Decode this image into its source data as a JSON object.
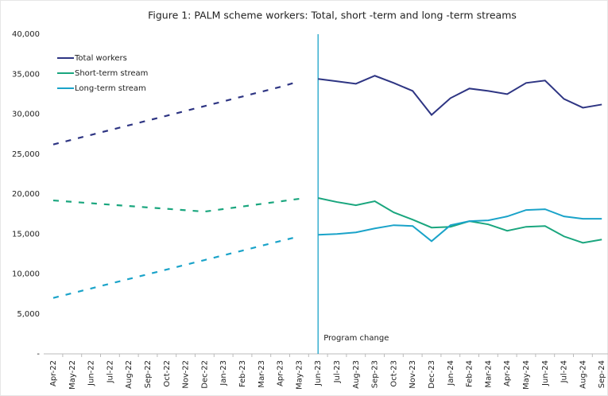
{
  "chart_data": {
    "type": "line",
    "title": "Figure 1: PALM scheme workers: Total, short -term and long -term streams",
    "categories": [
      "Apr-22",
      "May-22",
      "Jun-22",
      "Jul-22",
      "Aug-22",
      "Sep-22",
      "Oct-22",
      "Nov-22",
      "Dec-22",
      "Jan-23",
      "Feb-23",
      "Mar-23",
      "Apr-23",
      "May-23",
      "Jun-23",
      "Jul-23",
      "Aug-23",
      "Sep-23",
      "Oct-23",
      "Nov-23",
      "Dec-23",
      "Jan-24",
      "Feb-24",
      "Mar-24",
      "Apr-24",
      "May-24",
      "Jun-24",
      "Jul-24",
      "Aug-24",
      "Sep-24"
    ],
    "series": [
      {
        "name": "Total workers",
        "color": "#2e3583",
        "values": [
          26200,
          26800,
          27400,
          28000,
          28600,
          29200,
          29800,
          30400,
          31000,
          31600,
          32200,
          32800,
          33400,
          34100,
          34400,
          34100,
          33800,
          34800,
          33900,
          32900,
          29900,
          32000,
          33200,
          32900,
          32500,
          33900,
          34200,
          31900,
          30800,
          31200
        ]
      },
      {
        "name": "Short-term stream",
        "color": "#1aa67e",
        "values": [
          19200,
          19020,
          18850,
          18670,
          18500,
          18320,
          18150,
          17970,
          17800,
          18120,
          18440,
          18760,
          19080,
          19400,
          19500,
          19000,
          18600,
          19100,
          17700,
          16800,
          15800,
          15900,
          16600,
          16200,
          15400,
          15900,
          16000,
          14700,
          13900,
          14300
        ]
      },
      {
        "name": "Long-term stream",
        "color": "#1aa3c9",
        "values": [
          7000,
          7590,
          8180,
          8780,
          9370,
          9960,
          10550,
          11150,
          11740,
          12330,
          12920,
          13520,
          14110,
          14700,
          14900,
          15000,
          15200,
          15700,
          16100,
          16000,
          14100,
          16100,
          16600,
          16700,
          17200,
          18000,
          18100,
          17200,
          16900,
          16900
        ]
      }
    ],
    "annotations": [
      {
        "text": "Program change",
        "x": "Jun-23",
        "color": "#1aa3c9"
      }
    ],
    "ylim": [
      0,
      40000
    ],
    "yticks": [
      {
        "value": 0,
        "label": "-"
      },
      {
        "value": 5000,
        "label": "5,000"
      },
      {
        "value": 10000,
        "label": "10,000"
      },
      {
        "value": 15000,
        "label": "15,000"
      },
      {
        "value": 20000,
        "label": "20,000"
      },
      {
        "value": 25000,
        "label": "25,000"
      },
      {
        "value": 30000,
        "label": "30,000"
      },
      {
        "value": 35000,
        "label": "35,000"
      },
      {
        "value": 40000,
        "label": "40,000"
      }
    ],
    "grid": false,
    "legend": "upper left"
  }
}
